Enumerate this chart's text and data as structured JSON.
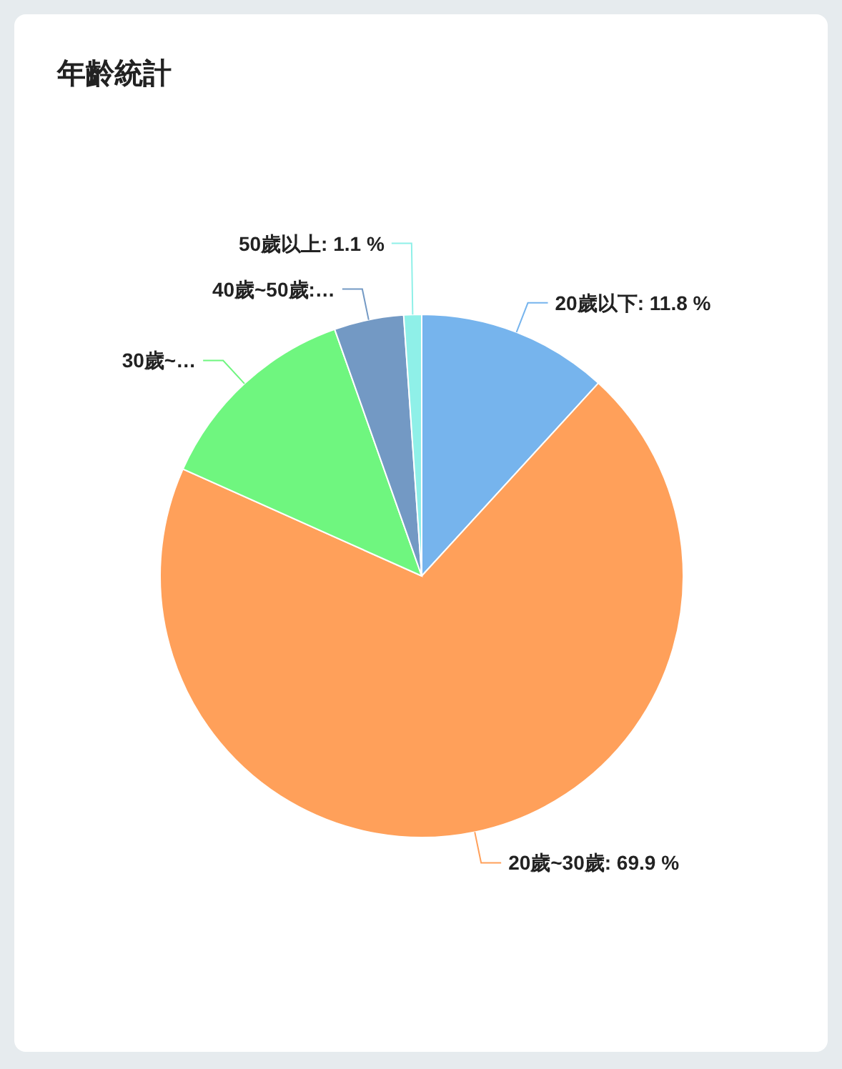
{
  "chart_data": {
    "type": "pie",
    "title": "年齡統計",
    "categories": [
      "20歲以下",
      "20歲~30歲",
      "30歲~…",
      "40歲~50歲:…",
      "50歲以上"
    ],
    "values": [
      11.8,
      69.9,
      12.9,
      4.3,
      1.1
    ],
    "value_labels": [
      "11.8 %",
      "69.9 %",
      null,
      null,
      "1.1 %"
    ],
    "colors": [
      "#76b4ed",
      "#ffa05a",
      "#6ff67f",
      "#7399c4",
      "#8ff0e8"
    ]
  }
}
